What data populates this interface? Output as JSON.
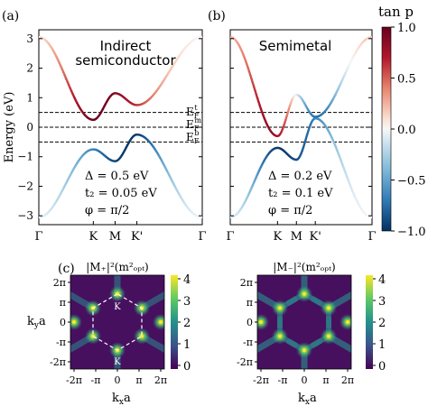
{
  "panels": {
    "a": {
      "label": "(a)",
      "title": "Indirect",
      "title2": "semiconductor",
      "params": [
        "Δ = 0.5 eV",
        "t₂ = 0.05 eV",
        "φ = π/2"
      ],
      "ef_labels": [
        "E_F^t",
        "E_F^m",
        "E_F^b"
      ]
    },
    "b": {
      "label": "(b)",
      "title": "Semimetal",
      "params": [
        "Δ = 0.2 eV",
        "t₂ = 0.1 eV",
        "φ = π/2"
      ]
    },
    "c": {
      "label": "(c)",
      "title_left": "|M₊|²(m²ₒₚₜ)",
      "title_right": "|M₋|²(m²ₒₚₜ)",
      "hex_labels": [
        "K",
        "K"
      ]
    }
  },
  "chart_data": [
    {
      "type": "line",
      "panel": "a",
      "ylabel": "Energy (eV)",
      "ylim": [
        -3.3,
        3.3
      ],
      "yticks": [
        -3,
        -2,
        -1,
        0,
        1,
        2,
        3
      ],
      "xticks": [
        "Γ",
        "K",
        "M",
        "K'",
        "Γ"
      ],
      "x": [
        0,
        0.5,
        0.7,
        0.9,
        1.5
      ],
      "series": [
        {
          "values": [
            3.05,
            0.25,
            1.15,
            0.75,
            3.05
          ]
        },
        {
          "values": [
            -3.05,
            -0.75,
            -1.15,
            -0.25,
            -3.05
          ]
        }
      ],
      "fermi_levels": [
        0.5,
        0.0,
        -0.5
      ],
      "colorbar": {
        "label": "tan p",
        "range": [
          -1.0,
          1.0
        ],
        "ticks": [
          "1.0",
          "0.5",
          "0.0",
          "-0.5",
          "-1.0"
        ]
      }
    },
    {
      "type": "line",
      "panel": "b",
      "ylim": [
        -3.3,
        3.3
      ],
      "xticks": [
        "Γ",
        "K",
        "M",
        "K'",
        "Γ"
      ],
      "x": [
        0,
        0.5,
        0.7,
        0.9,
        1.5
      ],
      "series": [
        {
          "values": [
            3.05,
            -0.3,
            1.1,
            0.35,
            3.05
          ]
        },
        {
          "values": [
            -3.05,
            -0.7,
            -1.1,
            0.3,
            -3.05
          ]
        }
      ],
      "fermi_levels": [
        0.5,
        0.0,
        -0.5
      ]
    },
    {
      "type": "heatmap",
      "panel": "c-left",
      "xlabel": "k_x a",
      "ylabel": "k_y a",
      "xticks": [
        "-2π",
        "-π",
        "0",
        "π",
        "2π"
      ],
      "yticks": [
        "2π",
        "π",
        "0",
        "-π",
        "-2π"
      ],
      "colorbar": {
        "range": [
          0,
          4
        ],
        "ticks": [
          "4",
          "3",
          "2",
          "1",
          "0"
        ]
      }
    },
    {
      "type": "heatmap",
      "panel": "c-right",
      "xlabel": "k_x a",
      "xticks": [
        "-2π",
        "-π",
        "0",
        "π",
        "2π"
      ],
      "yticks": [
        "2π",
        "π",
        "0",
        "-π",
        "-2π"
      ],
      "colorbar": {
        "range": [
          0,
          4
        ],
        "ticks": [
          "4",
          "3",
          "2",
          "1",
          "0"
        ]
      }
    }
  ]
}
